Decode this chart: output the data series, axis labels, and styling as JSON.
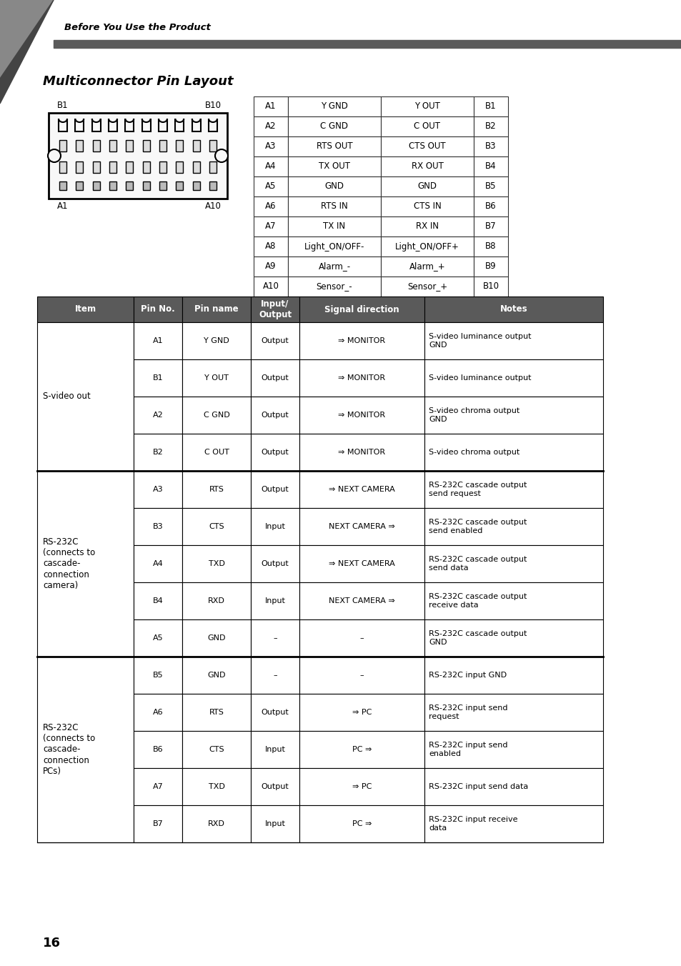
{
  "title": "Multiconnector Pin Layout",
  "header_text": "Before You Use the Product",
  "page_number": "16",
  "bg_color": "#ffffff",
  "header_bar_color": "#5a5a5a",
  "pin_table": {
    "rows": [
      [
        "A1",
        "Y GND",
        "Y OUT",
        "B1"
      ],
      [
        "A2",
        "C GND",
        "C OUT",
        "B2"
      ],
      [
        "A3",
        "RTS OUT",
        "CTS OUT",
        "B3"
      ],
      [
        "A4",
        "TX OUT",
        "RX OUT",
        "B4"
      ],
      [
        "A5",
        "GND",
        "GND",
        "B5"
      ],
      [
        "A6",
        "RTS IN",
        "CTS IN",
        "B6"
      ],
      [
        "A7",
        "TX IN",
        "RX IN",
        "B7"
      ],
      [
        "A8",
        "Light_ON/OFF-",
        "Light_ON/OFF+",
        "B8"
      ],
      [
        "A9",
        "Alarm_-",
        "Alarm_+",
        "B9"
      ],
      [
        "A10",
        "Sensor_-",
        "Sensor_+",
        "B10"
      ]
    ]
  },
  "main_table": {
    "headers": [
      "Item",
      "Pin No.",
      "Pin name",
      "Input/\nOutput",
      "Signal direction",
      "Notes"
    ],
    "header_bg": "#5a5a5a",
    "header_fg": "#ffffff",
    "groups": [
      {
        "item": "S-video out",
        "data": [
          [
            "A1",
            "Y GND",
            "Output",
            "⇒ MONITOR",
            "S-video luminance output\nGND"
          ],
          [
            "B1",
            "Y OUT",
            "Output",
            "⇒ MONITOR",
            "S-video luminance output"
          ],
          [
            "A2",
            "C GND",
            "Output",
            "⇒ MONITOR",
            "S-video chroma output\nGND"
          ],
          [
            "B2",
            "C OUT",
            "Output",
            "⇒ MONITOR",
            "S-video chroma output"
          ]
        ]
      },
      {
        "item": "RS-232C\n(connects to\ncascade-\nconnection\ncamera)",
        "data": [
          [
            "A3",
            "RTS",
            "Output",
            "⇒ NEXT CAMERA",
            "RS-232C cascade output\nsend request"
          ],
          [
            "B3",
            "CTS",
            "Input",
            "NEXT CAMERA ⇒",
            "RS-232C cascade output\nsend enabled"
          ],
          [
            "A4",
            "TXD",
            "Output",
            "⇒ NEXT CAMERA",
            "RS-232C cascade output\nsend data"
          ],
          [
            "B4",
            "RXD",
            "Input",
            "NEXT CAMERA ⇒",
            "RS-232C cascade output\nreceive data"
          ],
          [
            "A5",
            "GND",
            "–",
            "–",
            "RS-232C cascade output\nGND"
          ]
        ]
      },
      {
        "item": "RS-232C\n(connects to\ncascade-\nconnection\nPCs)",
        "data": [
          [
            "B5",
            "GND",
            "–",
            "–",
            "RS-232C input GND"
          ],
          [
            "A6",
            "RTS",
            "Output",
            "⇒ PC",
            "RS-232C input send\nrequest"
          ],
          [
            "B6",
            "CTS",
            "Input",
            "PC ⇒",
            "RS-232C input send\nenabled"
          ],
          [
            "A7",
            "TXD",
            "Output",
            "⇒ PC",
            "RS-232C input send data"
          ],
          [
            "B7",
            "RXD",
            "Input",
            "PC ⇒",
            "RS-232C input receive\ndata"
          ]
        ]
      }
    ]
  }
}
